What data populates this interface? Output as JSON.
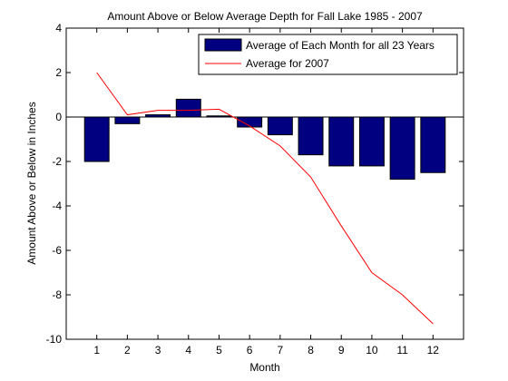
{
  "chart_data": {
    "type": "bar",
    "title": "Amount Above or Below Average Depth for Fall Lake 1985 - 2007",
    "xlabel": "Month",
    "ylabel": "Amount Above or Below in Inches",
    "xlim": [
      0,
      13
    ],
    "ylim": [
      -10,
      4
    ],
    "yticks": [
      -10,
      -8,
      -6,
      -4,
      -2,
      0,
      2,
      4
    ],
    "categories": [
      "1",
      "2",
      "3",
      "4",
      "5",
      "6",
      "7",
      "8",
      "9",
      "10",
      "11",
      "12"
    ],
    "series": [
      {
        "name": "Average of Each Month for all 23 Years",
        "type": "bar",
        "color": "#000080",
        "values": [
          -2.0,
          -0.3,
          0.1,
          0.8,
          0.05,
          -0.45,
          -0.8,
          -1.7,
          -2.2,
          -2.2,
          -2.8,
          -2.5
        ]
      },
      {
        "name": "Average for 2007",
        "type": "line",
        "color": "#ff0000",
        "values": [
          2.0,
          0.1,
          0.3,
          0.3,
          0.35,
          -0.4,
          -1.3,
          -2.7,
          -4.9,
          -7.0,
          -8.0,
          -9.3
        ]
      }
    ],
    "zero_line": true,
    "grid": false,
    "legend_position": "top-right"
  }
}
